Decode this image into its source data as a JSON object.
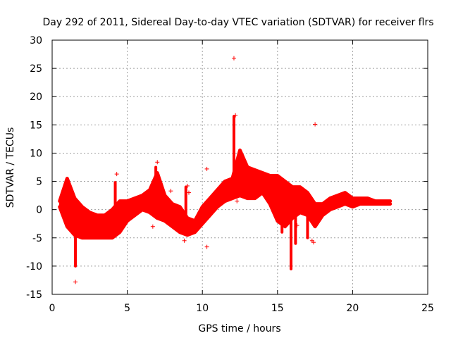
{
  "chart_data": {
    "type": "scatter",
    "title": "Day 292 of 2011, Sidereal Day-to-day VTEC variation (SDTVAR) for receiver flrs",
    "xlabel": "GPS time / hours",
    "ylabel": "SDTVAR / TECUs",
    "xlim": [
      0,
      25
    ],
    "ylim": [
      -15,
      30
    ],
    "xticks": [
      0,
      5,
      10,
      15,
      20,
      25
    ],
    "yticks": [
      -15,
      -10,
      -5,
      0,
      5,
      10,
      15,
      20,
      25,
      30
    ],
    "xtick_labels": [
      "0",
      "5",
      "10",
      "15",
      "20",
      "25"
    ],
    "ytick_labels": [
      "-15",
      "-10",
      "-5",
      "0",
      "5",
      "10",
      "15",
      "20",
      "25",
      "30"
    ],
    "grid": true,
    "marker": "+",
    "series": [
      {
        "name": "SDTVAR",
        "color": "#ff0000",
        "band_x": [
          0.5,
          1.0,
          1.5,
          2.0,
          2.5,
          3.0,
          3.5,
          4.0,
          4.5,
          5.0,
          5.5,
          6.0,
          6.5,
          7.0,
          7.5,
          8.0,
          8.5,
          9.0,
          9.5,
          10.0,
          10.5,
          11.0,
          11.5,
          12.0,
          12.5,
          13.0,
          13.5,
          14.0,
          14.5,
          15.0,
          15.5,
          16.0,
          16.5,
          17.0,
          17.5,
          18.0,
          18.5,
          19.0,
          19.5,
          20.0,
          20.5,
          21.0,
          21.5,
          22.0,
          22.5
        ],
        "band_upper": [
          1.5,
          5.5,
          2.0,
          0.5,
          -0.5,
          -1.0,
          -1.0,
          0.0,
          1.5,
          1.5,
          2.0,
          2.5,
          3.5,
          6.5,
          2.5,
          1.0,
          0.5,
          -1.5,
          -2.0,
          0.5,
          2.0,
          3.5,
          5.0,
          5.5,
          10.5,
          7.5,
          7.0,
          6.5,
          6.0,
          6.0,
          5.0,
          4.0,
          4.0,
          3.0,
          1.0,
          1.0,
          2.0,
          2.5,
          3.0,
          2.0,
          2.0,
          2.0,
          1.5,
          1.5,
          1.5
        ],
        "band_lower": [
          0.5,
          -3.0,
          -4.5,
          -5.0,
          -5.0,
          -5.0,
          -5.0,
          -5.0,
          -4.0,
          -2.0,
          -1.0,
          0.0,
          -0.5,
          -1.5,
          -2.0,
          -3.0,
          -4.0,
          -4.5,
          -4.0,
          -2.5,
          -1.0,
          0.5,
          1.5,
          2.0,
          2.5,
          2.0,
          2.0,
          3.0,
          1.0,
          -2.0,
          -3.0,
          -1.5,
          -0.5,
          -1.0,
          -3.0,
          -1.0,
          0.0,
          0.5,
          1.0,
          0.5,
          1.0,
          1.0,
          1.0,
          1.0,
          1.0
        ],
        "spikes": [
          {
            "x": 1.55,
            "y_from": -1.0,
            "y_to": -10.0
          },
          {
            "x": 4.2,
            "y_from": 0.0,
            "y_to": 4.8
          },
          {
            "x": 6.9,
            "y_from": 2.5,
            "y_to": 7.5
          },
          {
            "x": 8.9,
            "y_from": -3.0,
            "y_to": 4.0
          },
          {
            "x": 12.1,
            "y_from": 5.0,
            "y_to": 16.5
          },
          {
            "x": 15.3,
            "y_from": 2.0,
            "y_to": -4.0
          },
          {
            "x": 15.9,
            "y_from": 4.0,
            "y_to": -10.5
          },
          {
            "x": 16.2,
            "y_from": 3.5,
            "y_to": -6.0
          },
          {
            "x": 17.0,
            "y_from": 1.0,
            "y_to": -5.0
          }
        ],
        "outliers": [
          {
            "x": 12.1,
            "y": 26.8
          },
          {
            "x": 17.5,
            "y": 15.1
          },
          {
            "x": 1.55,
            "y": -12.8
          },
          {
            "x": 1.0,
            "y": -2.3
          },
          {
            "x": 0.55,
            "y": 1.7
          },
          {
            "x": 4.3,
            "y": 6.3
          },
          {
            "x": 7.0,
            "y": 8.4
          },
          {
            "x": 7.05,
            "y": 3.5
          },
          {
            "x": 7.9,
            "y": 3.3
          },
          {
            "x": 6.7,
            "y": -3.0
          },
          {
            "x": 10.3,
            "y": 7.2
          },
          {
            "x": 10.3,
            "y": -6.6
          },
          {
            "x": 8.8,
            "y": -5.5
          },
          {
            "x": 9.0,
            "y": 4.2
          },
          {
            "x": 9.1,
            "y": 3.0
          },
          {
            "x": 12.2,
            "y": 16.7
          },
          {
            "x": 12.3,
            "y": 1.5
          },
          {
            "x": 16.3,
            "y": -2.8
          },
          {
            "x": 17.3,
            "y": -5.5
          },
          {
            "x": 17.4,
            "y": -5.8
          },
          {
            "x": 0.6,
            "y": 0.8
          }
        ]
      }
    ]
  }
}
